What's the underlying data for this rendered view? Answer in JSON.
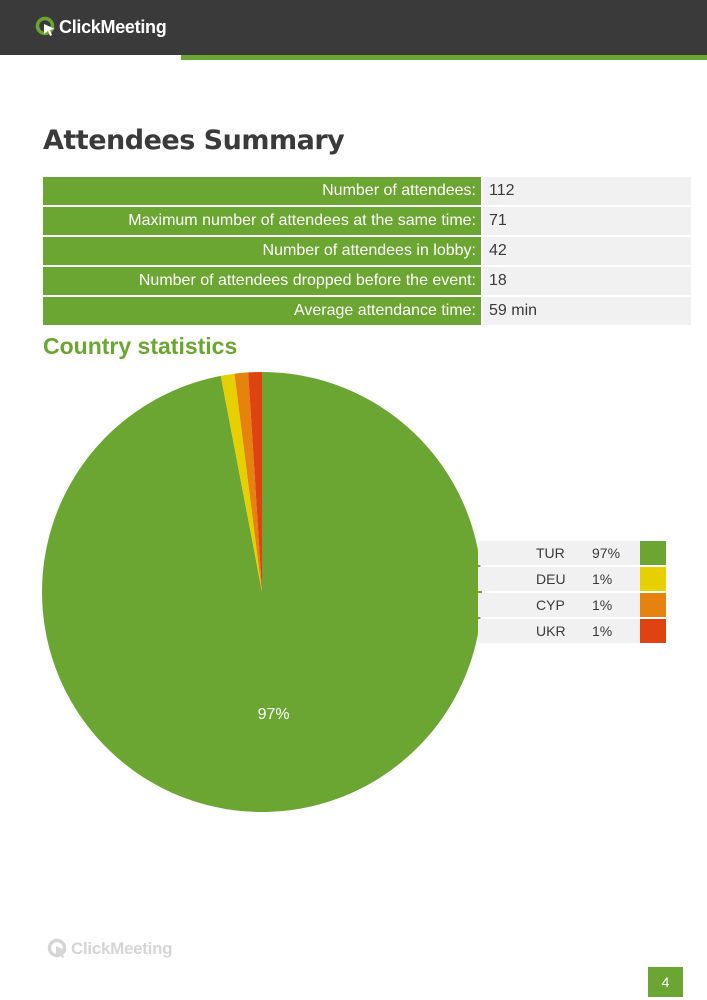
{
  "brand": {
    "name": "ClickMeeting",
    "accent": "#6aa631",
    "dark": "#3b3a3b"
  },
  "summary": {
    "title": "Attendees Summary",
    "rows": [
      {
        "label": "Number of attendees:",
        "value": "112"
      },
      {
        "label": "Maximum number of attendees at the same time:",
        "value": "71"
      },
      {
        "label": "Number of attendees in lobby:",
        "value": "42"
      },
      {
        "label": "Number of attendees dropped before the event:",
        "value": "18"
      },
      {
        "label": "Average attendance time:",
        "value": "59 min"
      }
    ]
  },
  "country_statistics": {
    "title": "Country statistics"
  },
  "chart_data": {
    "type": "pie",
    "slices": [
      {
        "label": "TUR",
        "value": 97,
        "display": "97%",
        "color": "#6aa631"
      },
      {
        "label": "DEU",
        "value": 1,
        "display": "1%",
        "color": "#e6d000"
      },
      {
        "label": "CYP",
        "value": 1,
        "display": "1%",
        "color": "#e6820e"
      },
      {
        "label": "UKR",
        "value": 1,
        "display": "1%",
        "color": "#df4312"
      }
    ],
    "slice_labels": [
      "97%"
    ],
    "legend_position": "right"
  },
  "footer": {
    "page_number": "4"
  }
}
